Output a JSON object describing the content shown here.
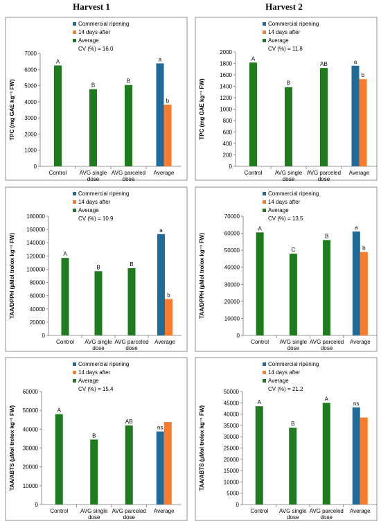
{
  "columns": [
    "Harvest 1",
    "Harvest 2"
  ],
  "colors": {
    "control": "#1e7b1e",
    "commercial": "#1f6b99",
    "after": "#f97b2c",
    "frame": "#8c8c8c",
    "grid": "#bdbdbd"
  },
  "legend": [
    "Commercial ripening",
    "14 days after",
    "Average"
  ],
  "chart_data": [
    {
      "type": "bar",
      "harvest": "Harvest 1",
      "ylabel": "TPC (mg GAE kg⁻¹ FW)",
      "ylim": [
        0,
        7000
      ],
      "ystep": 1000,
      "cv": "CV (%) = 16.0",
      "categories": [
        "Control",
        "AVG single dose",
        "AVG parceled dose",
        "Average"
      ],
      "average_values": [
        6250,
        4780,
        5040
      ],
      "average_letters": [
        "A",
        "B",
        "B"
      ],
      "commercial": {
        "value": 6380,
        "letter": "a"
      },
      "after14": {
        "value": 3820,
        "letter": "b"
      }
    },
    {
      "type": "bar",
      "harvest": "Harvest 2",
      "ylabel": "TPC (mg GAE kg⁻¹ FW)",
      "ylim": [
        0,
        2000
      ],
      "ystep": 200,
      "cv": "CV (%) = 11.8",
      "categories": [
        "Control",
        "AVG single dose",
        "AVG parceled dose",
        "Average"
      ],
      "average_values": [
        1815,
        1385,
        1720
      ],
      "average_letters": [
        "A",
        "B",
        "AB"
      ],
      "commercial": {
        "value": 1760,
        "letter": "a"
      },
      "after14": {
        "value": 1525,
        "letter": "b"
      }
    },
    {
      "type": "bar",
      "harvest": "Harvest 1",
      "ylabel": "TAA/DPPH (µMol trolox kg⁻¹ FW)",
      "ylim": [
        0,
        180000
      ],
      "ystep": 20000,
      "cv": "CV (%) = 10.9",
      "categories": [
        "Control",
        "AVG single dose",
        "AVG parceled dose",
        "Average"
      ],
      "average_values": [
        117000,
        97000,
        101500
      ],
      "average_letters": [
        "A",
        "B",
        "B"
      ],
      "commercial": {
        "value": 153000,
        "letter": "a"
      },
      "after14": {
        "value": 55000,
        "letter": "b"
      }
    },
    {
      "type": "bar",
      "harvest": "Harvest 2",
      "ylabel": "TAA/DPPH (µMol trolox kg⁻¹ FW)",
      "ylim": [
        0,
        70000
      ],
      "ystep": 10000,
      "cv": "CV (%) = 13.5",
      "categories": [
        "Control",
        "AVG single dose",
        "AVG parceled dose",
        "Average"
      ],
      "average_values": [
        60500,
        48000,
        56000
      ],
      "average_letters": [
        "A",
        "C",
        "B"
      ],
      "commercial": {
        "value": 61000,
        "letter": "a"
      },
      "after14": {
        "value": 49000,
        "letter": "b"
      }
    },
    {
      "type": "bar",
      "harvest": "Harvest 1",
      "ylabel": "TAA/ABTS (µMol trolox kg⁻¹ FW)",
      "ylim": [
        0,
        60000
      ],
      "ystep": 10000,
      "cv": "CV (%) = 15.4",
      "categories": [
        "Control",
        "AVG single dose",
        "AVG parceled dose",
        "Average"
      ],
      "average_values": [
        48000,
        34500,
        42000
      ],
      "average_letters": [
        "A",
        "B",
        "AB"
      ],
      "commercial": {
        "value": 38800,
        "letter": "ns"
      },
      "after14": {
        "value": 43800,
        "letter": ""
      }
    },
    {
      "type": "bar",
      "harvest": "Harvest 2",
      "ylabel": "TAA/ABTS (µMol trolox kg⁻¹ FW)",
      "ylim": [
        0,
        50000
      ],
      "ystep": 5000,
      "cv": "CV (%) = 21.2",
      "categories": [
        "Control",
        "AVG single dose",
        "AVG parceled dose",
        "Average"
      ],
      "average_values": [
        43500,
        34000,
        45000
      ],
      "average_letters": [
        "A",
        "B",
        "A"
      ],
      "commercial": {
        "value": 43000,
        "letter": "ns"
      },
      "after14": {
        "value": 38500,
        "letter": ""
      }
    }
  ]
}
